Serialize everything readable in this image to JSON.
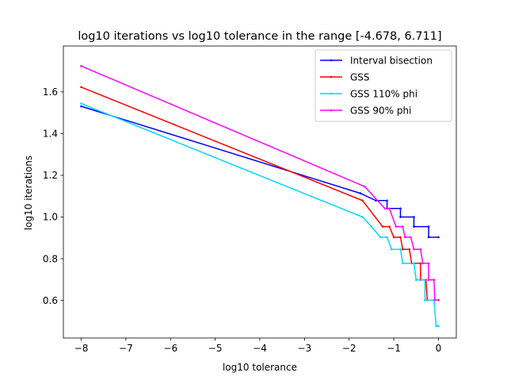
{
  "chart_data": {
    "type": "line",
    "title": "log10 iterations vs log10 tolerance in the range [-4.678, 6.711]",
    "xlabel": "log10 tolerance",
    "ylabel": "log10 iterations",
    "xlim": [
      -8.4,
      0.4
    ],
    "ylim": [
      0.42,
      1.82
    ],
    "xticks": [
      -8,
      -7,
      -6,
      -5,
      -4,
      -3,
      -2,
      -1,
      0
    ],
    "xtick_labels": [
      "−8",
      "−7",
      "−6",
      "−5",
      "−4",
      "−3",
      "−2",
      "−1",
      "0"
    ],
    "yticks": [
      0.6,
      0.8,
      1.0,
      1.2,
      1.4,
      1.6
    ],
    "ytick_labels": [
      "0.6",
      "0.8",
      "1.0",
      "1.2",
      "1.4",
      "1.6"
    ],
    "grid": false,
    "legend_position": "top-right",
    "series": [
      {
        "name": "Interval bisection",
        "color": "#0000ff",
        "marker": "dot",
        "points": [
          [
            -8,
            1.531
          ],
          [
            -1.75,
            1.114
          ],
          [
            -1.4,
            1.079
          ],
          [
            -1.15,
            1.079
          ],
          [
            -1.15,
            1.041
          ],
          [
            -0.85,
            1.041
          ],
          [
            -0.85,
            1.0
          ],
          [
            -0.55,
            1.0
          ],
          [
            -0.55,
            0.954
          ],
          [
            -0.22,
            0.954
          ],
          [
            -0.22,
            0.903
          ],
          [
            0.0,
            0.903
          ]
        ]
      },
      {
        "name": "GSS",
        "color": "#ff0000",
        "marker": "dot",
        "points": [
          [
            -8,
            1.623
          ],
          [
            -1.7,
            1.079
          ],
          [
            -1.25,
            0.954
          ],
          [
            -1.1,
            0.954
          ],
          [
            -1.0,
            0.903
          ],
          [
            -0.85,
            0.903
          ],
          [
            -0.8,
            0.845
          ],
          [
            -0.65,
            0.845
          ],
          [
            -0.6,
            0.778
          ],
          [
            -0.4,
            0.778
          ],
          [
            -0.4,
            0.699
          ],
          [
            -0.28,
            0.699
          ],
          [
            -0.25,
            0.602
          ],
          [
            0.0,
            0.602
          ]
        ]
      },
      {
        "name": "GSS 110% phi",
        "color": "#00d8ff",
        "marker": "dot",
        "points": [
          [
            -8,
            1.544
          ],
          [
            -1.7,
            1.0
          ],
          [
            -1.5,
            0.954
          ],
          [
            -1.3,
            0.903
          ],
          [
            -1.15,
            0.903
          ],
          [
            -1.05,
            0.845
          ],
          [
            -0.85,
            0.845
          ],
          [
            -0.8,
            0.778
          ],
          [
            -0.55,
            0.778
          ],
          [
            -0.5,
            0.699
          ],
          [
            -0.3,
            0.699
          ],
          [
            -0.3,
            0.602
          ],
          [
            -0.1,
            0.602
          ],
          [
            -0.05,
            0.477
          ],
          [
            0.0,
            0.477
          ]
        ]
      },
      {
        "name": "GSS 90% phi",
        "color": "#ff00ff",
        "marker": "dot",
        "points": [
          [
            -8,
            1.724
          ],
          [
            -1.65,
            1.146
          ],
          [
            -1.2,
            1.041
          ],
          [
            -1.1,
            1.041
          ],
          [
            -0.95,
            0.954
          ],
          [
            -0.8,
            0.954
          ],
          [
            -0.75,
            0.903
          ],
          [
            -0.62,
            0.903
          ],
          [
            -0.55,
            0.845
          ],
          [
            -0.4,
            0.845
          ],
          [
            -0.35,
            0.778
          ],
          [
            -0.22,
            0.778
          ],
          [
            -0.22,
            0.699
          ],
          [
            -0.1,
            0.699
          ],
          [
            -0.08,
            0.602
          ],
          [
            0.0,
            0.602
          ]
        ]
      }
    ]
  }
}
